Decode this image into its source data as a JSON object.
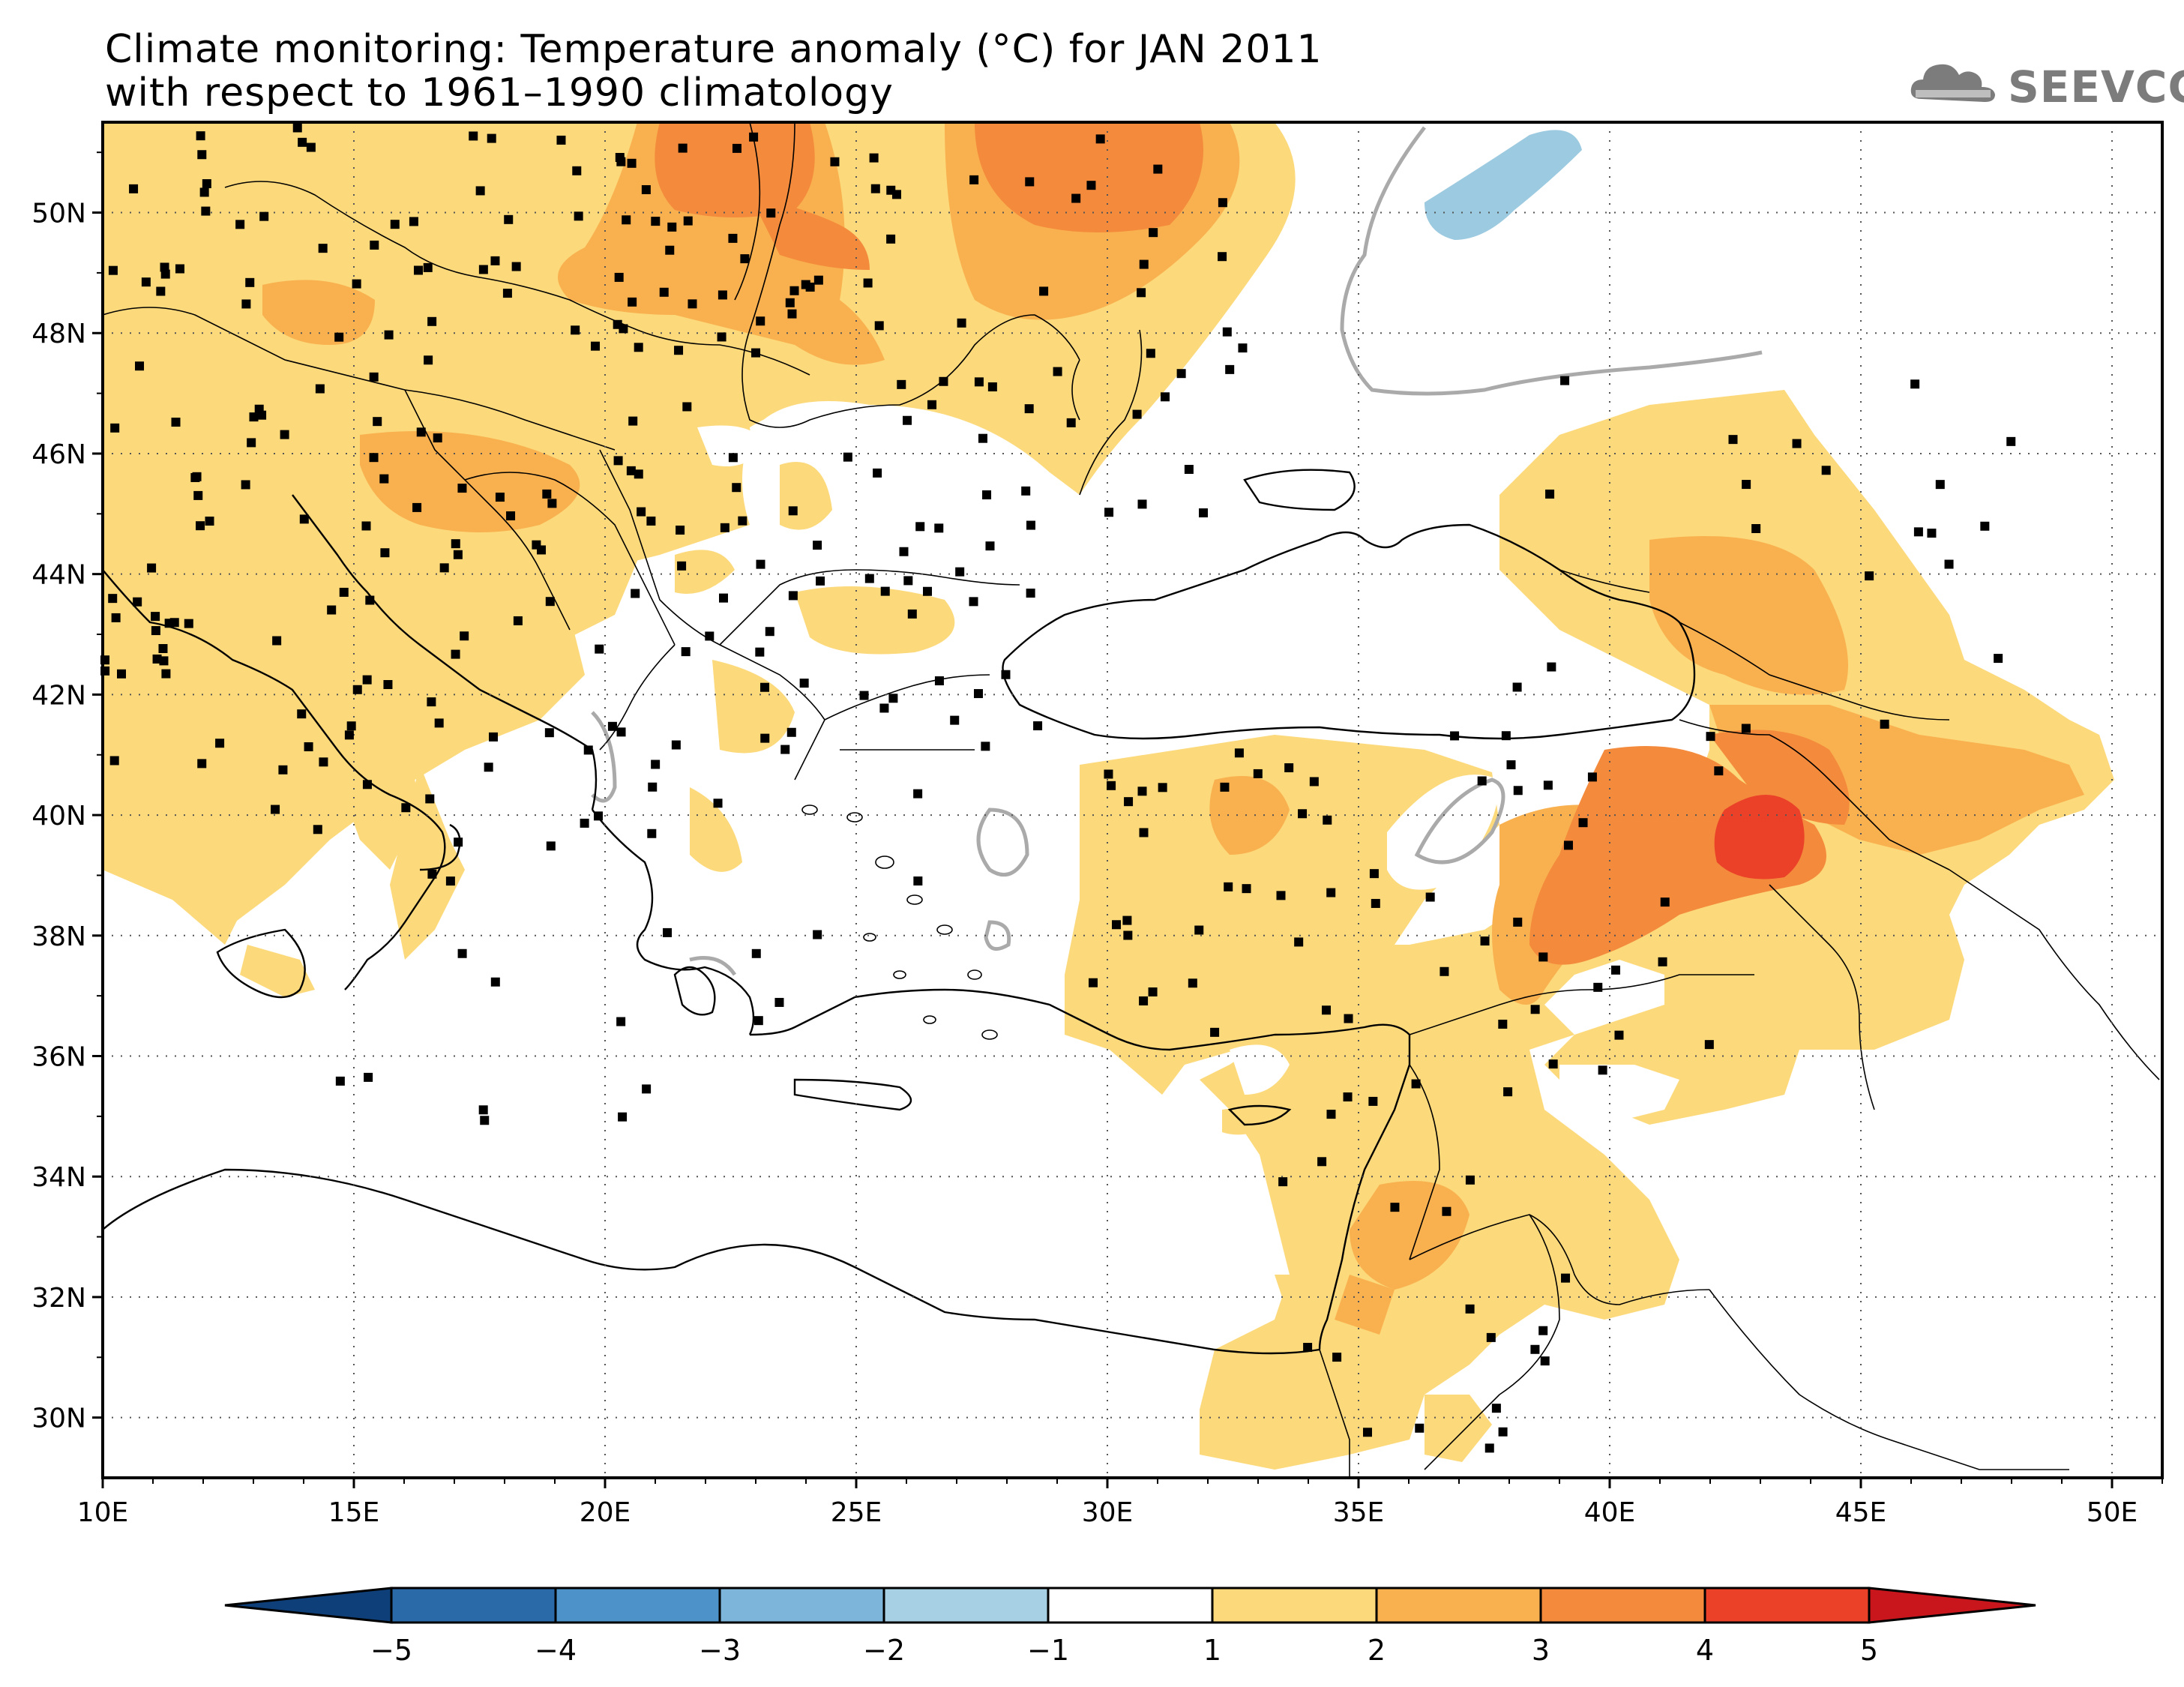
{
  "title": {
    "line1": "Climate monitoring: Temperature anomaly (°C) for JAN 2011",
    "line2": "with respect to 1961–1990 climatology"
  },
  "logo": {
    "text": "SEEVCCC",
    "icon": "cloud-icon",
    "color": "#7c7c7c"
  },
  "map": {
    "lon_range": [
      10,
      51
    ],
    "lat_range": [
      29,
      51.5
    ],
    "lon_ticks": [
      {
        "value": 10,
        "label": "10E"
      },
      {
        "value": 15,
        "label": "15E"
      },
      {
        "value": 20,
        "label": "20E"
      },
      {
        "value": 25,
        "label": "25E"
      },
      {
        "value": 30,
        "label": "30E"
      },
      {
        "value": 35,
        "label": "35E"
      },
      {
        "value": 40,
        "label": "40E"
      },
      {
        "value": 45,
        "label": "45E"
      },
      {
        "value": 50,
        "label": "50E"
      }
    ],
    "lat_ticks": [
      {
        "value": 30,
        "label": "30N"
      },
      {
        "value": 32,
        "label": "32N"
      },
      {
        "value": 34,
        "label": "34N"
      },
      {
        "value": 36,
        "label": "36N"
      },
      {
        "value": 38,
        "label": "38N"
      },
      {
        "value": 40,
        "label": "40N"
      },
      {
        "value": 42,
        "label": "42N"
      },
      {
        "value": 44,
        "label": "44N"
      },
      {
        "value": 46,
        "label": "46N"
      },
      {
        "value": 48,
        "label": "48N"
      },
      {
        "value": 50,
        "label": "50N"
      }
    ],
    "grid": "dotted",
    "colors": {
      "1-2": "#fcd97a",
      "2-3": "#f9b04e",
      "3-4": "#f48a3c",
      "4-5": "#ea4128",
      "-2--1": "#9ccae0",
      "zero_contour": "#aaaaaa",
      "coast": "#000000",
      "station": "#000000"
    }
  },
  "colorbar": {
    "levels": [
      "−5",
      "−4",
      "−3",
      "−2",
      "−1",
      "1",
      "2",
      "3",
      "4",
      "5"
    ],
    "colors": [
      "#0e3f78",
      "#2b6aa8",
      "#4d93c9",
      "#7cb4da",
      "#a7d0e4",
      "#ffffff",
      "#fcd97a",
      "#f9b04e",
      "#f48a3c",
      "#ea4128",
      "#c8161c"
    ]
  }
}
